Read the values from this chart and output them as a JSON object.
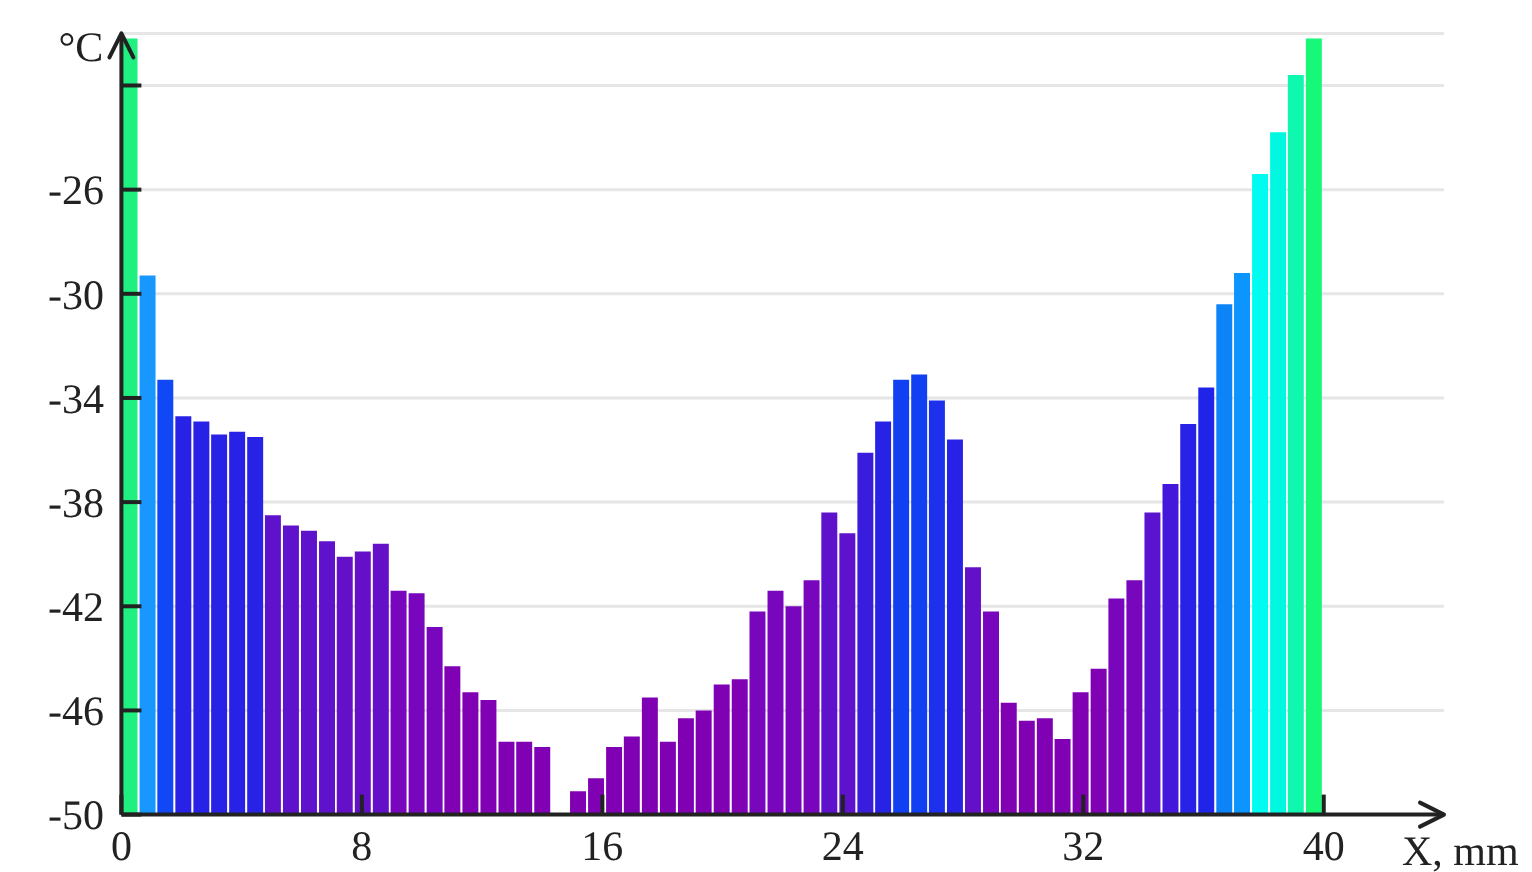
{
  "chart_data": {
    "type": "bar",
    "xlabel": "X, mm",
    "ylabel": "°C",
    "x": [
      0.3,
      0.9,
      1.49,
      2.09,
      2.69,
      3.28,
      3.88,
      4.48,
      5.07,
      5.67,
      6.27,
      6.87,
      7.46,
      8.06,
      8.66,
      9.25,
      9.85,
      10.45,
      11.04,
      11.64,
      12.24,
      12.84,
      13.43,
      14.03,
      14.63,
      15.22,
      15.82,
      16.42,
      17.01,
      17.61,
      18.21,
      18.81,
      19.4,
      20,
      20.6,
      21.19,
      21.79,
      22.39,
      22.99,
      23.58,
      24.18,
      24.78,
      25.37,
      25.97,
      26.57,
      27.16,
      27.76,
      28.36,
      28.96,
      29.55,
      30.15,
      30.75,
      31.34,
      31.94,
      32.54,
      33.13,
      33.73,
      34.33,
      34.93,
      35.52,
      36.12,
      36.72,
      37.31,
      37.91,
      38.51,
      39.1,
      39.7
    ],
    "base": [
      -50,
      -50,
      -50,
      -50,
      -50,
      -50,
      -50,
      -50,
      -50,
      -50,
      -50,
      -50,
      -50,
      -50,
      -50,
      -50,
      -50,
      -50,
      -50,
      -50,
      -50,
      -50,
      -50,
      -50,
      null,
      -50,
      -50,
      -50,
      -50,
      -50,
      -50,
      -50,
      -50,
      -50,
      -50,
      -50,
      -50,
      -50,
      -50,
      -50,
      -50,
      -50,
      -50,
      -50,
      -50,
      -50,
      -50,
      -50,
      -50,
      -50,
      -50,
      -50,
      -50,
      -50,
      -50,
      -50,
      -50,
      -50,
      -50,
      -50,
      -50,
      -50,
      -50,
      -50,
      -50,
      -50,
      -50
    ],
    "values": [
      29.8,
      20.7,
      16.7,
      15.3,
      15.1,
      14.6,
      14.7,
      14.5,
      11.5,
      11.1,
      10.9,
      10.5,
      9.9,
      10.1,
      10.4,
      8.6,
      8.5,
      7.2,
      5.7,
      4.7,
      4.4,
      2.8,
      2.8,
      2.6,
      null,
      0.9,
      1.4,
      2.6,
      3.0,
      4.5,
      2.8,
      3.7,
      4.0,
      5.0,
      5.2,
      7.8,
      8.6,
      8.0,
      9.0,
      11.6,
      10.8,
      13.9,
      15.1,
      16.7,
      16.9,
      15.9,
      14.4,
      9.5,
      7.8,
      4.3,
      3.6,
      3.7,
      2.9,
      4.7,
      5.6,
      8.3,
      9.0,
      11.6,
      12.7,
      15.0,
      16.4,
      19.6,
      20.8,
      24.6,
      26.2,
      28.4,
      29.8
    ],
    "colors": [
      "#20f080",
      "#1898ff",
      "#1048f5",
      "#2822e6",
      "#2822e6",
      "#2822e6",
      "#2822e6",
      "#2822e6",
      "#5e12cc",
      "#5e12cc",
      "#5e12cc",
      "#5e12cc",
      "#6410c8",
      "#6410c8",
      "#6410c8",
      "#7806bc",
      "#7806bc",
      "#7806bc",
      "#8000b4",
      "#8000b4",
      "#8000b4",
      "#8000b4",
      "#8000b4",
      "#8000b4",
      null,
      "#8000b4",
      "#8000b4",
      "#8000b4",
      "#8000b4",
      "#8000b4",
      "#8000b4",
      "#8000b4",
      "#8000b4",
      "#8000b4",
      "#8000b4",
      "#7806bc",
      "#7806bc",
      "#7806bc",
      "#7806bc",
      "#5e12cc",
      "#5e12cc",
      "#3a1cde",
      "#2822e6",
      "#1040f2",
      "#1040f2",
      "#1c30ee",
      "#2822e6",
      "#6410c8",
      "#7806bc",
      "#8000b4",
      "#8000b4",
      "#8000b4",
      "#8000b4",
      "#8000b4",
      "#8000b4",
      "#7806bc",
      "#7806bc",
      "#5a14d0",
      "#4418da",
      "#2822e6",
      "#2024e8",
      "#0c84f8",
      "#0c94ff",
      "#00fcf0",
      "#00f8e0",
      "#10f8b0",
      "#18f878"
    ],
    "xlim": [
      0,
      44
    ],
    "xticks": [
      0,
      8,
      16,
      24,
      32,
      40
    ],
    "ylim": [
      -50,
      -20
    ],
    "yticks": [
      -50,
      -46,
      -42,
      -38,
      -34,
      -30,
      -26,
      {
        "value": -22,
        "label": null
      }
    ],
    "grid": "y"
  }
}
